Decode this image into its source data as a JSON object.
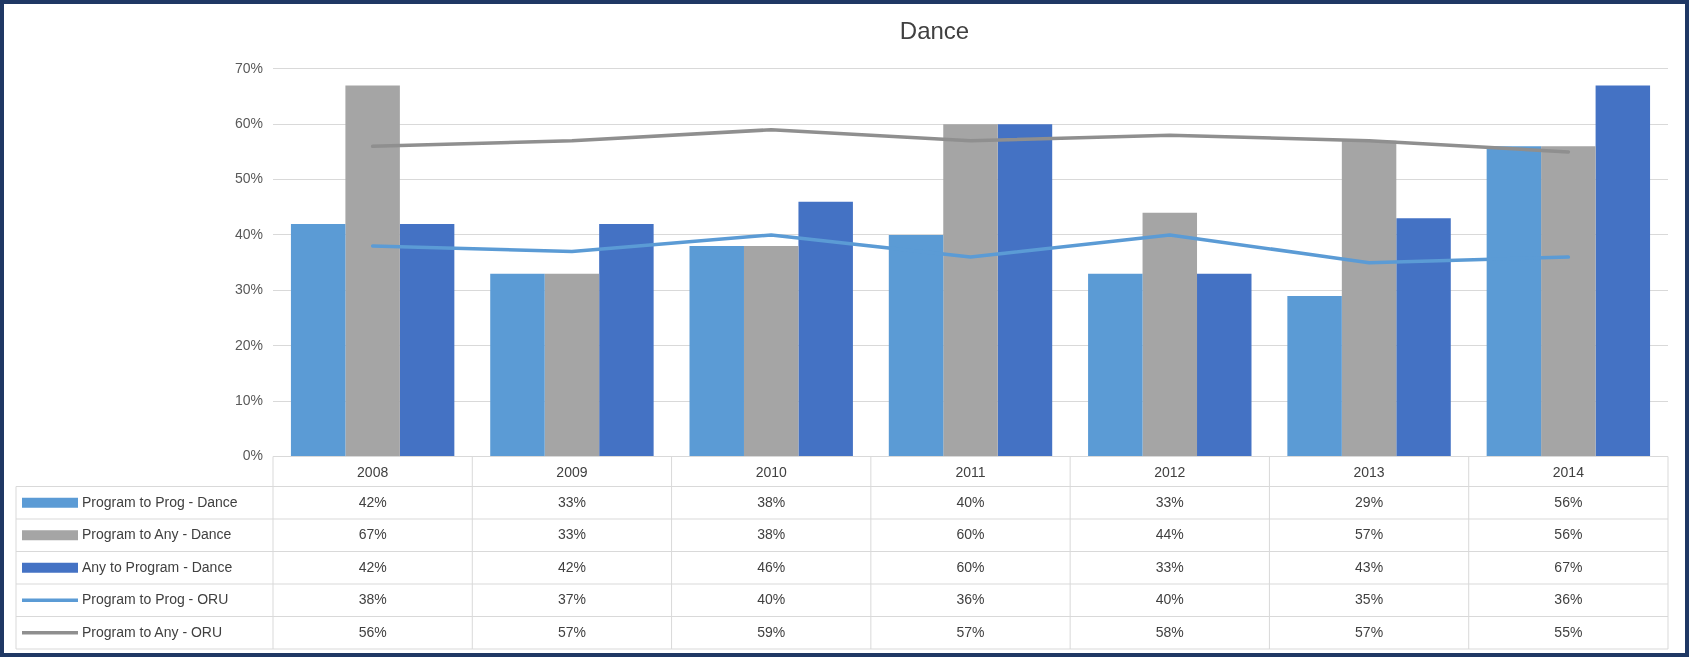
{
  "chart_data": {
    "type": "bar",
    "title": "Dance",
    "categories": [
      "2008",
      "2009",
      "2010",
      "2011",
      "2012",
      "2013",
      "2014"
    ],
    "series": [
      {
        "name": "Program to Prog - Dance",
        "color": "#5b9bd5",
        "values": [
          42,
          33,
          38,
          40,
          33,
          29,
          56
        ],
        "value_labels": [
          "42%",
          "33%",
          "38%",
          "40%",
          "33%",
          "29%",
          "56%"
        ]
      },
      {
        "name": "Program to Any - Dance",
        "color": "#a5a5a5",
        "values": [
          67,
          33,
          38,
          60,
          44,
          57,
          56
        ],
        "value_labels": [
          "67%",
          "33%",
          "38%",
          "60%",
          "44%",
          "57%",
          "56%"
        ]
      },
      {
        "name": "Any to Program - Dance",
        "color": "#4472c4",
        "values": [
          42,
          42,
          46,
          60,
          33,
          43,
          67
        ],
        "value_labels": [
          "42%",
          "42%",
          "46%",
          "60%",
          "33%",
          "43%",
          "67%"
        ]
      },
      {
        "name": "Program to Prog - ORU",
        "type": "line",
        "color": "#5b9bd5",
        "values": [
          38,
          37,
          40,
          36,
          40,
          35,
          36
        ],
        "value_labels": [
          "38%",
          "37%",
          "40%",
          "36%",
          "40%",
          "35%",
          "36%"
        ]
      },
      {
        "name": "Program to Any - ORU",
        "type": "line",
        "color": "#8f8f8f",
        "values": [
          56,
          57,
          59,
          57,
          58,
          57,
          55
        ],
        "value_labels": [
          "56%",
          "57%",
          "59%",
          "57%",
          "58%",
          "57%",
          "55%"
        ]
      }
    ],
    "ylim": [
      0,
      70
    ],
    "yticks": [
      {
        "value": 0,
        "label": "0%"
      },
      {
        "value": 10,
        "label": "10%"
      },
      {
        "value": 20,
        "label": "20%"
      },
      {
        "value": 30,
        "label": "30%"
      },
      {
        "value": 40,
        "label": "40%"
      },
      {
        "value": 50,
        "label": "50%"
      },
      {
        "value": 60,
        "label": "60%"
      },
      {
        "value": 70,
        "label": "70%"
      }
    ],
    "grid": "y",
    "legend": "bottom",
    "marker": "none",
    "line_style": "solid"
  }
}
